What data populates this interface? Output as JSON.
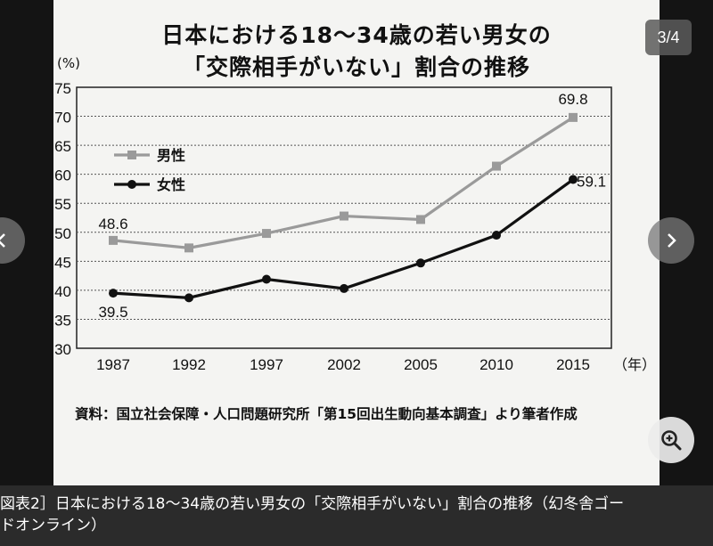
{
  "viewer": {
    "counter": "3/4",
    "caption_line1": "図表2］日本における18〜34歳の若い男女の「交際相手がいない」割合の推移（幻冬舎ゴー",
    "caption_line2": "ドオンライン）",
    "icons": [
      "chevron-left-icon",
      "chevron-right-icon",
      "zoom-in-icon"
    ]
  },
  "figure": {
    "title_line1": "日本における18〜34歳の若い男女の",
    "title_line2": "「交際相手がいない」割合の推移",
    "source": "資料：国立社会保障・人口問題研究所「第15回出生動向基本調査」より筆者作成"
  },
  "chart_data": {
    "type": "line",
    "title": "日本における18〜34歳の若い男女の「交際相手がいない」割合の推移",
    "x": [
      "1987",
      "1992",
      "1997",
      "2002",
      "2005",
      "2010",
      "2015"
    ],
    "xlabel": "（年）",
    "ylabel": "(%)",
    "ylim": [
      30,
      75
    ],
    "yticks": [
      30,
      35,
      40,
      45,
      50,
      55,
      60,
      65,
      70,
      75
    ],
    "grid": true,
    "legend_position": "top-left",
    "series": [
      {
        "name": "男性",
        "values": [
          48.6,
          47.3,
          49.8,
          52.8,
          52.2,
          61.4,
          69.8
        ],
        "color": "#9a9a9a",
        "marker": "square"
      },
      {
        "name": "女性",
        "values": [
          39.5,
          38.7,
          41.9,
          40.3,
          44.7,
          49.5,
          59.1
        ],
        "color": "#111111",
        "marker": "circle"
      }
    ],
    "annotations": [
      {
        "series": "男性",
        "x": "1987",
        "label": "48.6"
      },
      {
        "series": "女性",
        "x": "1987",
        "label": "39.5"
      },
      {
        "series": "男性",
        "x": "2015",
        "label": "69.8"
      },
      {
        "series": "女性",
        "x": "2015",
        "label": "59.1"
      }
    ]
  }
}
